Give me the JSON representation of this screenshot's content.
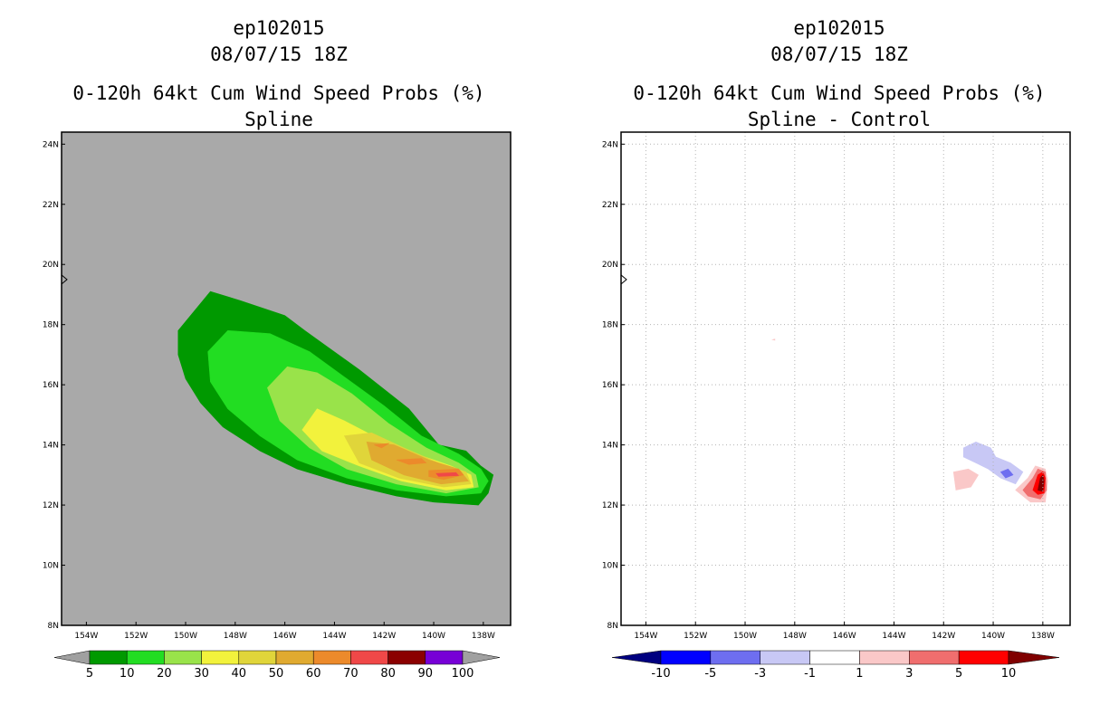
{
  "left_panel": {
    "storm_id": "ep102015",
    "datetime": "08/07/15 18Z",
    "product": "0-120h 64kt Cum Wind Speed Probs (%)",
    "method": "Spline"
  },
  "right_panel": {
    "storm_id": "ep102015",
    "datetime": "08/07/15 18Z",
    "product": "0-120h 64kt Cum Wind Speed Probs (%)",
    "method": "Spline - Control"
  },
  "chart_data": [
    {
      "type": "heatmap",
      "title": "0-120h 64kt Cum Wind Speed Probs (%) - Spline",
      "x_ticks": [
        "154W",
        "152W",
        "150W",
        "148W",
        "146W",
        "144W",
        "142W",
        "140W",
        "138W"
      ],
      "y_ticks": [
        "8N",
        "10N",
        "12N",
        "14N",
        "16N",
        "18N",
        "20N",
        "22N",
        "24N"
      ],
      "xlim": [
        -155.0,
        -136.9
      ],
      "ylim": [
        8,
        24.4
      ],
      "background_color": "#a9a9a9",
      "grid": false,
      "colorbar": {
        "labels": [
          "5",
          "10",
          "20",
          "30",
          "40",
          "50",
          "60",
          "70",
          "80",
          "90",
          "100"
        ],
        "colors": [
          "#009900",
          "#22dd22",
          "#99e34a",
          "#f2f23c",
          "#e0d53a",
          "#e0aa30",
          "#ec8a2b",
          "#f04848",
          "#8b0000",
          "#7700d6"
        ],
        "under_color": "#a0a0a0",
        "over_color": "#a0a0a0"
      },
      "contours": [
        {
          "level": 5,
          "color": "#009900",
          "polygon": [
            [
              -150.3,
              17.8
            ],
            [
              -149,
              19.1
            ],
            [
              -147.8,
              18.8
            ],
            [
              -146,
              18.3
            ],
            [
              -145.2,
              17.8
            ],
            [
              -143,
              16.5
            ],
            [
              -141,
              15.2
            ],
            [
              -139.8,
              14
            ],
            [
              -138.7,
              13.8
            ],
            [
              -138.1,
              13.3
            ],
            [
              -137.6,
              13
            ],
            [
              -137.8,
              12.4
            ],
            [
              -138.2,
              12
            ],
            [
              -140,
              12.1
            ],
            [
              -141.5,
              12.3
            ],
            [
              -143.5,
              12.7
            ],
            [
              -145.5,
              13.2
            ],
            [
              -147,
              13.8
            ],
            [
              -148.5,
              14.6
            ],
            [
              -149.4,
              15.4
            ],
            [
              -150,
              16.2
            ],
            [
              -150.3,
              17
            ]
          ]
        },
        {
          "level": 10,
          "color": "#22dd22",
          "polygon": [
            [
              -149.1,
              17.1
            ],
            [
              -148.3,
              17.8
            ],
            [
              -146.6,
              17.7
            ],
            [
              -145,
              17.1
            ],
            [
              -143.5,
              16.2
            ],
            [
              -142,
              15.3
            ],
            [
              -140.5,
              14.3
            ],
            [
              -139,
              13.7
            ],
            [
              -138.1,
              13.2
            ],
            [
              -137.8,
              12.8
            ],
            [
              -138.1,
              12.4
            ],
            [
              -139.5,
              12.3
            ],
            [
              -141.5,
              12.5
            ],
            [
              -143.5,
              12.9
            ],
            [
              -145.5,
              13.5
            ],
            [
              -147,
              14.3
            ],
            [
              -148.3,
              15.2
            ],
            [
              -149,
              16.1
            ]
          ]
        },
        {
          "level": 20,
          "color": "#99e34a",
          "polygon": [
            [
              -146.7,
              15.9
            ],
            [
              -145.9,
              16.6
            ],
            [
              -144.7,
              16.4
            ],
            [
              -143.3,
              15.7
            ],
            [
              -141.8,
              14.7
            ],
            [
              -140.3,
              13.9
            ],
            [
              -139,
              13.4
            ],
            [
              -138.3,
              13
            ],
            [
              -138.2,
              12.6
            ],
            [
              -139.5,
              12.4
            ],
            [
              -141.5,
              12.7
            ],
            [
              -143.5,
              13.2
            ],
            [
              -145,
              13.9
            ],
            [
              -146.2,
              14.8
            ]
          ]
        },
        {
          "level": 30,
          "color": "#f2f23c",
          "polygon": [
            [
              -145.3,
              14.5
            ],
            [
              -144.7,
              15.2
            ],
            [
              -143.6,
              14.8
            ],
            [
              -142.2,
              14.2
            ],
            [
              -140.7,
              13.7
            ],
            [
              -139.3,
              13.3
            ],
            [
              -138.5,
              13
            ],
            [
              -138.4,
              12.6
            ],
            [
              -139.5,
              12.5
            ],
            [
              -141.3,
              12.8
            ],
            [
              -143,
              13.3
            ],
            [
              -144.5,
              13.8
            ]
          ]
        },
        {
          "level": 40,
          "color": "#e0d53a",
          "polygon": [
            [
              -143.6,
              14.3
            ],
            [
              -142.5,
              14.4
            ],
            [
              -141.2,
              13.9
            ],
            [
              -139.8,
              13.4
            ],
            [
              -138.7,
              13.1
            ],
            [
              -138.5,
              12.7
            ],
            [
              -139.6,
              12.6
            ],
            [
              -141.4,
              12.9
            ],
            [
              -143,
              13.4
            ]
          ]
        },
        {
          "level": 50,
          "color": "#e0aa30",
          "polygon": [
            [
              -142.7,
              14.1
            ],
            [
              -141.6,
              14
            ],
            [
              -140.2,
              13.5
            ],
            [
              -139,
              13.2
            ],
            [
              -138.6,
              12.8
            ],
            [
              -139.7,
              12.7
            ],
            [
              -141.2,
              13
            ],
            [
              -142.5,
              13.5
            ]
          ]
        },
        {
          "level": 60,
          "color": "#ec8a2b",
          "polygon": [
            [
              -142.4,
              14
            ],
            [
              -141.8,
              14.05
            ],
            [
              -142.1,
              13.9
            ]
          ]
        },
        {
          "level": 60,
          "color": "#ec8a2b",
          "polygon": [
            [
              -141.5,
              13.5
            ],
            [
              -140.5,
              13.55
            ],
            [
              -140.3,
              13.4
            ],
            [
              -141,
              13.35
            ]
          ]
        },
        {
          "level": 60,
          "color": "#ec8a2b",
          "polygon": [
            [
              -140.2,
              13.15
            ],
            [
              -139,
              13.2
            ],
            [
              -138.8,
              13
            ],
            [
              -139.6,
              12.85
            ],
            [
              -140.2,
              12.95
            ]
          ]
        },
        {
          "level": 70,
          "color": "#f04848",
          "polygon": [
            [
              -139.9,
              13.05
            ],
            [
              -139.1,
              13.08
            ],
            [
              -139,
              12.98
            ],
            [
              -139.8,
              12.95
            ]
          ]
        }
      ]
    },
    {
      "type": "heatmap",
      "title": "0-120h 64kt Cum Wind Speed Probs (%) - Spline - Control",
      "x_ticks": [
        "154W",
        "152W",
        "150W",
        "148W",
        "146W",
        "144W",
        "142W",
        "140W",
        "138W"
      ],
      "y_ticks": [
        "8N",
        "10N",
        "12N",
        "14N",
        "16N",
        "18N",
        "20N",
        "22N",
        "24N"
      ],
      "xlim": [
        -155.0,
        -136.9
      ],
      "ylim": [
        8,
        24.4
      ],
      "background_color": "#ffffff",
      "grid": true,
      "colorbar": {
        "labels": [
          "-10",
          "-5",
          "-3",
          "-1",
          "1",
          "3",
          "5",
          "10"
        ],
        "colors": [
          "#0000ff",
          "#6e6ef0",
          "#c8c8f5",
          "#ffffff",
          "#fac8c8",
          "#f06e6e",
          "#ff0000"
        ],
        "under_color": "#000080",
        "over_color": "#800000"
      },
      "contours": [
        {
          "level": -3,
          "color": "#c8c8f5",
          "polygon": [
            [
              -141.2,
              13.9
            ],
            [
              -140.7,
              14.1
            ],
            [
              -140.1,
              13.9
            ],
            [
              -139.9,
              13.6
            ],
            [
              -139.3,
              13.4
            ],
            [
              -138.8,
              13.1
            ],
            [
              -139.1,
              12.7
            ],
            [
              -139.7,
              12.9
            ],
            [
              -140.2,
              13.2
            ],
            [
              -140.7,
              13.4
            ],
            [
              -141.2,
              13.6
            ]
          ]
        },
        {
          "level": -5,
          "color": "#6e6ef0",
          "polygon": [
            [
              -139.7,
              13.1
            ],
            [
              -139.4,
              13.2
            ],
            [
              -139.2,
              13
            ],
            [
              -139.5,
              12.9
            ]
          ]
        },
        {
          "level": 1,
          "color": "#fac8c8",
          "polygon": [
            [
              -141.6,
              13.1
            ],
            [
              -141,
              13.2
            ],
            [
              -140.6,
              13.0
            ],
            [
              -140.9,
              12.6
            ],
            [
              -141.5,
              12.5
            ]
          ]
        },
        {
          "level": 1,
          "color": "#fac8c8",
          "polygon": [
            [
              -138.6,
              12.9
            ],
            [
              -138.3,
              13.3
            ],
            [
              -137.9,
              13.2
            ],
            [
              -137.8,
              12.8
            ],
            [
              -137.9,
              12.1
            ],
            [
              -138.5,
              12.1
            ],
            [
              -139.1,
              12.5
            ]
          ]
        },
        {
          "level": 1,
          "color": "#fac8c8",
          "polygon": [
            [
              -148.9,
              17.5
            ],
            [
              -148.8,
              17.52
            ],
            [
              -148.8,
              17.48
            ]
          ]
        },
        {
          "level": 3,
          "color": "#f06e6e",
          "polygon": [
            [
              -138.4,
              12.9
            ],
            [
              -138.2,
              13.2
            ],
            [
              -137.9,
              13.1
            ],
            [
              -137.85,
              12.5
            ],
            [
              -138.1,
              12.2
            ],
            [
              -138.6,
              12.3
            ],
            [
              -138.8,
              12.5
            ]
          ]
        },
        {
          "level": 5,
          "color": "#ff0000",
          "polygon": [
            [
              -138.2,
              13.0
            ],
            [
              -138.0,
              13.1
            ],
            [
              -137.9,
              12.9
            ],
            [
              -137.95,
              12.4
            ],
            [
              -138.2,
              12.35
            ],
            [
              -138.4,
              12.5
            ]
          ]
        },
        {
          "level": 10,
          "color": "#800000",
          "polygon": [
            [
              -138.1,
              12.9
            ],
            [
              -138.0,
              13.0
            ],
            [
              -137.95,
              12.8
            ],
            [
              -138.0,
              12.45
            ],
            [
              -138.2,
              12.5
            ]
          ]
        }
      ]
    }
  ]
}
